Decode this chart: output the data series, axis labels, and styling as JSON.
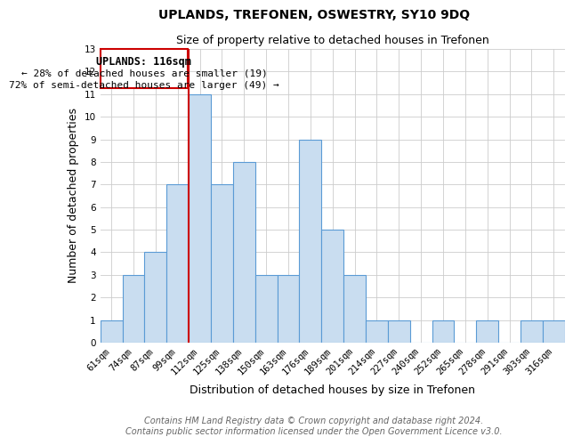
{
  "title": "UPLANDS, TREFONEN, OSWESTRY, SY10 9DQ",
  "subtitle": "Size of property relative to detached houses in Trefonen",
  "xlabel": "Distribution of detached houses by size in Trefonen",
  "ylabel": "Number of detached properties",
  "bar_labels": [
    "61sqm",
    "74sqm",
    "87sqm",
    "99sqm",
    "112sqm",
    "125sqm",
    "138sqm",
    "150sqm",
    "163sqm",
    "176sqm",
    "189sqm",
    "201sqm",
    "214sqm",
    "227sqm",
    "240sqm",
    "252sqm",
    "265sqm",
    "278sqm",
    "291sqm",
    "303sqm",
    "316sqm"
  ],
  "bar_values": [
    1,
    3,
    4,
    7,
    11,
    7,
    8,
    3,
    3,
    9,
    5,
    3,
    1,
    1,
    0,
    1,
    0,
    1,
    0,
    1,
    1
  ],
  "bar_color": "#c9ddf0",
  "bar_edge_color": "#5b9bd5",
  "vline_x": 3.5,
  "vline_color": "#cc0000",
  "annotation_title": "UPLANDS: 116sqm",
  "annotation_line1": "← 28% of detached houses are smaller (19)",
  "annotation_line2": "72% of semi-detached houses are larger (49) →",
  "annotation_box_color": "white",
  "annotation_box_edge": "#cc0000",
  "ylim": [
    0,
    13
  ],
  "yticks": [
    0,
    1,
    2,
    3,
    4,
    5,
    6,
    7,
    8,
    9,
    10,
    11,
    12,
    13
  ],
  "footer_line1": "Contains HM Land Registry data © Crown copyright and database right 2024.",
  "footer_line2": "Contains public sector information licensed under the Open Government Licence v3.0.",
  "title_fontsize": 10,
  "subtitle_fontsize": 9,
  "axis_label_fontsize": 9,
  "tick_fontsize": 7.5,
  "footer_fontsize": 7,
  "annotation_fontsize": 8.5
}
